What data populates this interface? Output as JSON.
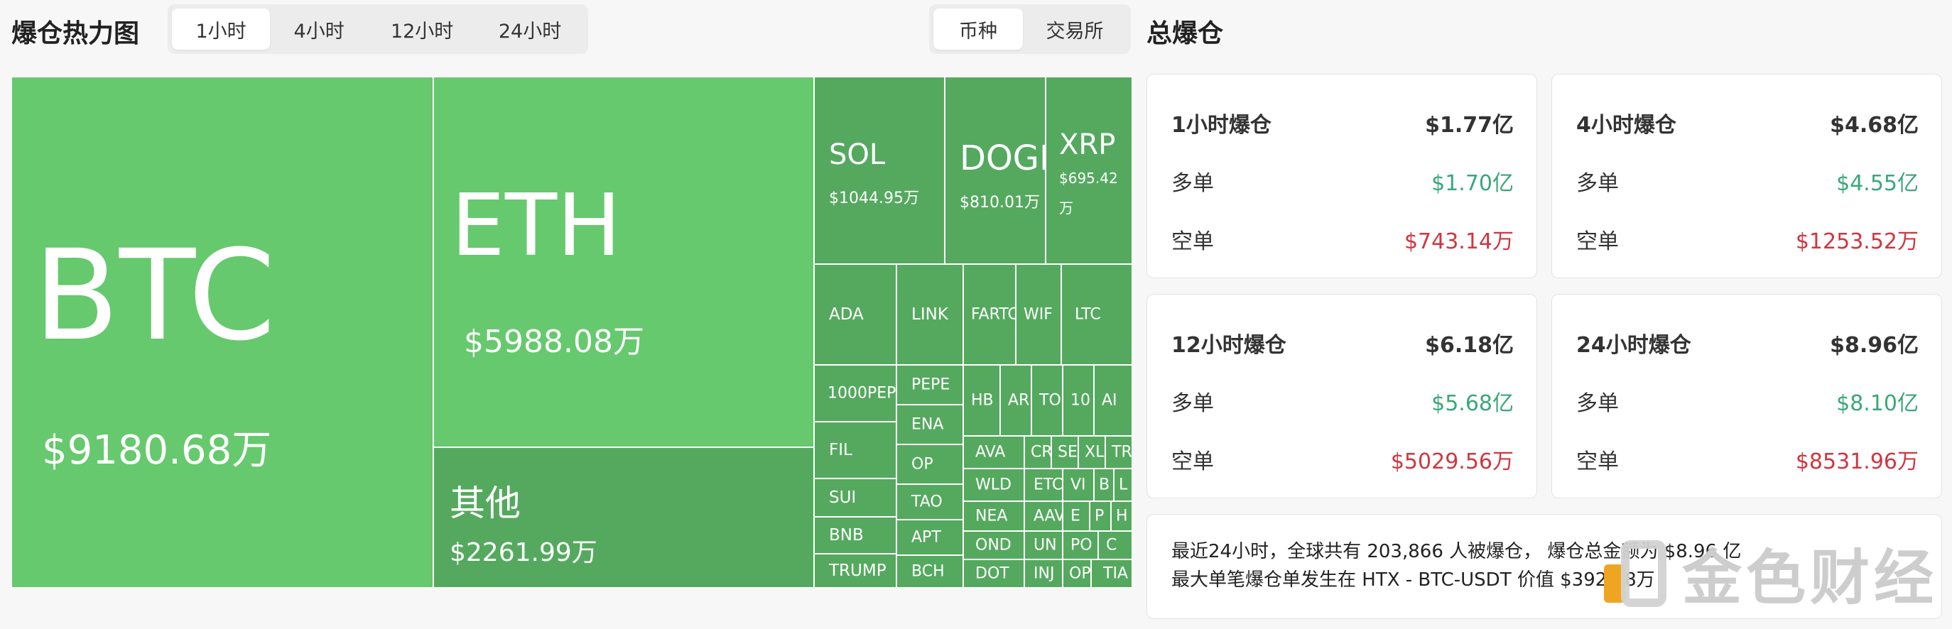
{
  "heatmap": {
    "title": "爆仓热力图",
    "time_tabs": [
      "1小时",
      "4小时",
      "12小时",
      "24小时"
    ],
    "active_time_tab": "1小时",
    "group_tabs": [
      "币种",
      "交易所"
    ],
    "active_group_tab": "币种",
    "tiles": {
      "btc": {
        "symbol": "BTC",
        "value": "$9180.68万"
      },
      "eth": {
        "symbol": "ETH",
        "value": "$5988.08万"
      },
      "other": {
        "symbol": "其他",
        "value": "$2261.99万"
      },
      "sol": {
        "symbol": "SOL",
        "value": "$1044.95万"
      },
      "doge": {
        "symbol": "DOGE",
        "value": "$810.01万"
      },
      "xrp": {
        "symbol": "XRP",
        "value": "$695.42",
        "value2": "万"
      },
      "small": [
        "ADA",
        "LINK",
        "FARTC",
        "WIF",
        "LTC",
        "1000PEP",
        "PEPE",
        "HB",
        "AR",
        "TO",
        "10",
        "AI",
        "ENA",
        "AVA",
        "CR",
        "SE",
        "XL",
        "TR",
        "FIL",
        "OP",
        "WLD",
        "ETC",
        "VI",
        "B",
        "L",
        "SUI",
        "TAO",
        "NEA",
        "AAV",
        "E",
        "P",
        "H",
        "BNB",
        "APT",
        "OND",
        "UN",
        "PO",
        "C",
        "TRUMP",
        "BCH",
        "DOT",
        "INJ",
        "OP",
        "TIA"
      ]
    },
    "colors": {
      "large": "#66c96e",
      "medium": "#5db866",
      "small": "#55a95f"
    }
  },
  "summary_panel": {
    "title": "总爆仓",
    "long_label": "多单",
    "short_label": "空单",
    "cards": [
      {
        "period": "1小时爆仓",
        "total": "$1.77亿",
        "long": "$1.70亿",
        "short": "$743.14万"
      },
      {
        "period": "4小时爆仓",
        "total": "$4.68亿",
        "long": "$4.55亿",
        "short": "$1253.52万"
      },
      {
        "period": "12小时爆仓",
        "total": "$6.18亿",
        "long": "$5.68亿",
        "short": "$5029.56万"
      },
      {
        "period": "24小时爆仓",
        "total": "$8.96亿",
        "long": "$8.10亿",
        "short": "$8531.96万"
      }
    ],
    "notice_line1": "最近24小时，全球共有 203,866 人被爆仓， 爆仓总金额为 $8.96 亿",
    "notice_line2": "最大单笔爆仓单发生在 HTX - BTC-USDT 价值 $392.48万",
    "colors": {
      "long": "#3aa77a",
      "short": "#d0363f"
    }
  },
  "watermark": {
    "text": "金色财经",
    "icon": "jinse-logo-icon"
  }
}
